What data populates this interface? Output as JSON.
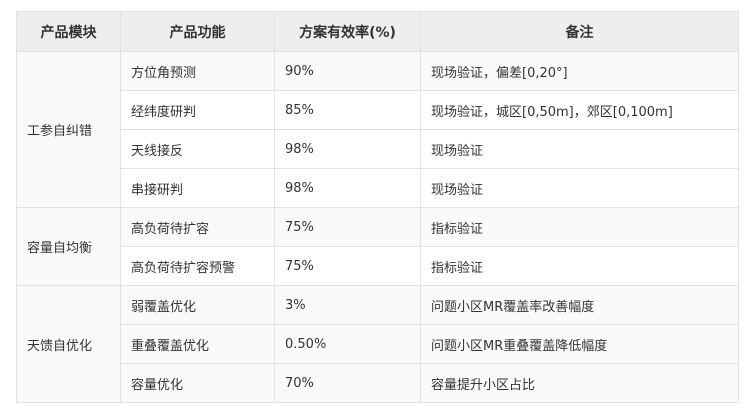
{
  "headers": [
    "产品模块",
    "产品功能",
    "方案有效率(%)",
    "备注"
  ],
  "groups": [
    {
      "module": "工参自纠错",
      "rows": [
        {
          "function": "方位角预测",
          "rate": "90%",
          "note": "现场验证，偏差[0,20°]"
        },
        {
          "function": "经纬度研判",
          "rate": "85%",
          "note": "现场验证，城区[0,50m]，郊区[0,100m]"
        },
        {
          "function": "天线接反",
          "rate": "98%",
          "note": "现场验证"
        },
        {
          "function": "串接研判",
          "rate": "98%",
          "note": "现场验证"
        }
      ]
    },
    {
      "module": "容量自均衡",
      "rows": [
        {
          "function": "高负荷待扩容",
          "rate": "75%",
          "note": "指标验证"
        },
        {
          "function": "高负荷待扩容预警",
          "rate": "75%",
          "note": "指标验证"
        }
      ]
    },
    {
      "module": "天馈自优化",
      "rows": [
        {
          "function": "弱覆盖优化",
          "rate": "3%",
          "note": "问题小区MR覆盖率改善幅度"
        },
        {
          "function": "重叠覆盖优化",
          "rate": "0.50%",
          "note": "问题小区MR重叠覆盖降低幅度"
        },
        {
          "function": "容量优化",
          "rate": "70%",
          "note": "容量提升小区占比"
        }
      ]
    }
  ]
}
